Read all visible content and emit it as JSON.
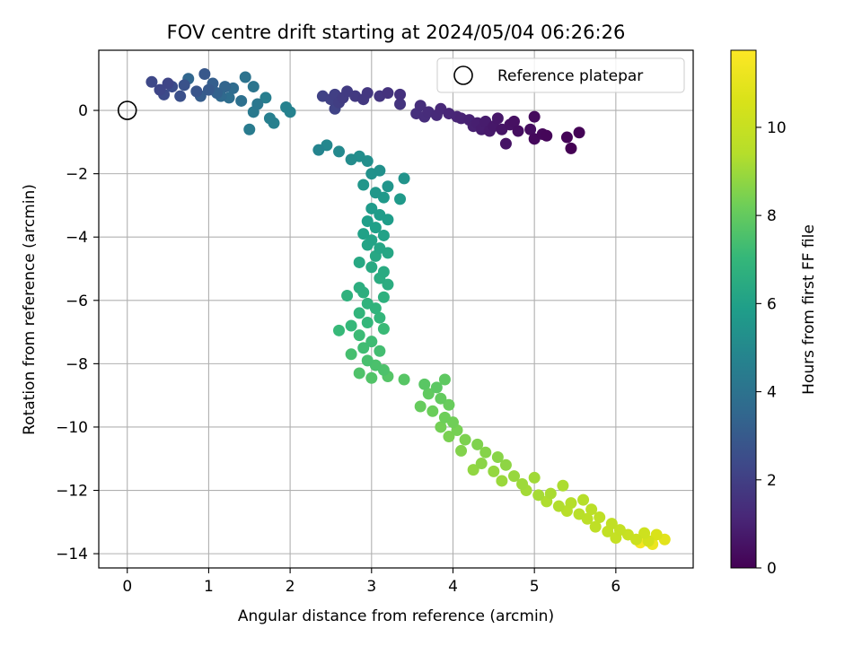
{
  "chart_data": {
    "type": "scatter",
    "title": "FOV centre drift starting at 2024/05/04 06:26:26",
    "xlabel": "Angular distance from reference (arcmin)",
    "ylabel": "Rotation from reference (arcmin)",
    "xlim": [
      -0.35,
      6.95
    ],
    "ylim": [
      -14.45,
      1.9
    ],
    "xticks": [
      "0",
      "1",
      "2",
      "3",
      "4",
      "5",
      "6"
    ],
    "yticks": [
      "0",
      "−2",
      "−4",
      "−6",
      "−8",
      "−10",
      "−12",
      "−14"
    ],
    "grid": true,
    "legend": {
      "position": "upper-right",
      "label": "Reference platepar"
    },
    "reference_point": {
      "x": 0,
      "y": 0
    },
    "colormap": "viridis",
    "colorbar": {
      "label": "Hours from first FF file",
      "range": [
        0,
        11.75
      ],
      "ticks": [
        "0",
        "2",
        "4",
        "6",
        "8",
        "10"
      ]
    },
    "series": [
      {
        "values": [
          {
            "x": 5.45,
            "y": -1.2,
            "h": 0.0
          },
          {
            "x": 5.55,
            "y": -0.7,
            "h": 0.05
          },
          {
            "x": 5.4,
            "y": -0.85,
            "h": 0.1
          },
          {
            "x": 5.15,
            "y": -0.8,
            "h": 0.15
          },
          {
            "x": 5.1,
            "y": -0.75,
            "h": 0.2
          },
          {
            "x": 5.0,
            "y": -0.9,
            "h": 0.25
          },
          {
            "x": 5.0,
            "y": -0.2,
            "h": 0.3
          },
          {
            "x": 4.95,
            "y": -0.6,
            "h": 0.35
          },
          {
            "x": 4.8,
            "y": -0.65,
            "h": 0.4
          },
          {
            "x": 4.75,
            "y": -0.35,
            "h": 0.45
          },
          {
            "x": 4.7,
            "y": -0.45,
            "h": 0.5
          },
          {
            "x": 4.65,
            "y": -1.05,
            "h": 0.55
          },
          {
            "x": 4.6,
            "y": -0.6,
            "h": 0.6
          },
          {
            "x": 4.55,
            "y": -0.25,
            "h": 0.65
          },
          {
            "x": 4.5,
            "y": -0.5,
            "h": 0.7
          },
          {
            "x": 4.45,
            "y": -0.65,
            "h": 0.75
          },
          {
            "x": 4.4,
            "y": -0.35,
            "h": 0.8
          },
          {
            "x": 4.35,
            "y": -0.6,
            "h": 0.85
          },
          {
            "x": 4.3,
            "y": -0.4,
            "h": 0.9
          },
          {
            "x": 4.25,
            "y": -0.5,
            "h": 0.95
          },
          {
            "x": 4.2,
            "y": -0.3,
            "h": 1.0
          },
          {
            "x": 4.1,
            "y": -0.25,
            "h": 1.05
          },
          {
            "x": 4.05,
            "y": -0.2,
            "h": 1.1
          },
          {
            "x": 3.95,
            "y": -0.1,
            "h": 1.15
          },
          {
            "x": 3.85,
            "y": 0.05,
            "h": 1.2
          },
          {
            "x": 3.8,
            "y": -0.15,
            "h": 1.25
          },
          {
            "x": 3.7,
            "y": -0.05,
            "h": 1.3
          },
          {
            "x": 3.65,
            "y": -0.2,
            "h": 1.35
          },
          {
            "x": 3.6,
            "y": 0.15,
            "h": 1.4
          },
          {
            "x": 3.55,
            "y": -0.1,
            "h": 1.45
          },
          {
            "x": 3.35,
            "y": 0.5,
            "h": 1.5
          },
          {
            "x": 3.2,
            "y": 0.55,
            "h": 1.55
          },
          {
            "x": 3.35,
            "y": 0.2,
            "h": 1.6
          },
          {
            "x": 3.1,
            "y": 0.45,
            "h": 1.65
          },
          {
            "x": 2.95,
            "y": 0.55,
            "h": 1.7
          },
          {
            "x": 2.9,
            "y": 0.35,
            "h": 1.75
          },
          {
            "x": 2.8,
            "y": 0.45,
            "h": 1.8
          },
          {
            "x": 2.7,
            "y": 0.6,
            "h": 1.85
          },
          {
            "x": 2.65,
            "y": 0.4,
            "h": 1.9
          },
          {
            "x": 2.6,
            "y": 0.25,
            "h": 1.95
          },
          {
            "x": 2.55,
            "y": 0.5,
            "h": 2.0
          },
          {
            "x": 2.5,
            "y": 0.35,
            "h": 2.05
          },
          {
            "x": 2.4,
            "y": 0.45,
            "h": 2.1
          },
          {
            "x": 2.55,
            "y": 0.05,
            "h": 2.15
          },
          {
            "x": 0.5,
            "y": 0.85,
            "h": 2.2
          },
          {
            "x": 0.4,
            "y": 0.65,
            "h": 2.25
          },
          {
            "x": 0.3,
            "y": 0.9,
            "h": 2.3
          },
          {
            "x": 0.45,
            "y": 0.5,
            "h": 2.4
          },
          {
            "x": 0.55,
            "y": 0.75,
            "h": 2.5
          },
          {
            "x": 0.65,
            "y": 0.45,
            "h": 2.6
          },
          {
            "x": 0.7,
            "y": 0.8,
            "h": 2.7
          },
          {
            "x": 0.85,
            "y": 0.6,
            "h": 2.8
          },
          {
            "x": 0.95,
            "y": 1.15,
            "h": 2.9
          },
          {
            "x": 1.0,
            "y": 0.65,
            "h": 3.0
          },
          {
            "x": 0.9,
            "y": 0.45,
            "h": 3.1
          },
          {
            "x": 1.05,
            "y": 0.85,
            "h": 3.2
          },
          {
            "x": 1.1,
            "y": 0.55,
            "h": 3.3
          },
          {
            "x": 1.2,
            "y": 0.75,
            "h": 3.4
          },
          {
            "x": 0.75,
            "y": 1.0,
            "h": 3.5
          },
          {
            "x": 1.15,
            "y": 0.45,
            "h": 3.6
          },
          {
            "x": 1.3,
            "y": 0.7,
            "h": 3.7
          },
          {
            "x": 1.25,
            "y": 0.4,
            "h": 3.8
          },
          {
            "x": 1.4,
            "y": 0.3,
            "h": 3.9
          },
          {
            "x": 1.45,
            "y": 1.05,
            "h": 4.0
          },
          {
            "x": 1.55,
            "y": 0.75,
            "h": 4.1
          },
          {
            "x": 1.6,
            "y": 0.2,
            "h": 4.2
          },
          {
            "x": 1.55,
            "y": -0.05,
            "h": 4.3
          },
          {
            "x": 1.5,
            "y": -0.6,
            "h": 4.4
          },
          {
            "x": 1.7,
            "y": 0.4,
            "h": 4.5
          },
          {
            "x": 1.75,
            "y": -0.25,
            "h": 4.55
          },
          {
            "x": 1.8,
            "y": -0.4,
            "h": 4.6
          },
          {
            "x": 1.95,
            "y": 0.1,
            "h": 4.65
          },
          {
            "x": 2.0,
            "y": -0.05,
            "h": 4.7
          },
          {
            "x": 2.35,
            "y": -1.25,
            "h": 4.8
          },
          {
            "x": 2.45,
            "y": -1.1,
            "h": 4.9
          },
          {
            "x": 2.6,
            "y": -1.3,
            "h": 5.0
          },
          {
            "x": 2.75,
            "y": -1.55,
            "h": 5.1
          },
          {
            "x": 2.85,
            "y": -1.45,
            "h": 5.2
          },
          {
            "x": 2.95,
            "y": -1.6,
            "h": 5.25
          },
          {
            "x": 3.1,
            "y": -1.9,
            "h": 5.3
          },
          {
            "x": 3.0,
            "y": -2.0,
            "h": 5.35
          },
          {
            "x": 3.4,
            "y": -2.15,
            "h": 5.4
          },
          {
            "x": 3.2,
            "y": -2.4,
            "h": 5.5
          },
          {
            "x": 2.9,
            "y": -2.35,
            "h": 5.55
          },
          {
            "x": 3.05,
            "y": -2.6,
            "h": 5.6
          },
          {
            "x": 3.15,
            "y": -2.75,
            "h": 5.65
          },
          {
            "x": 3.35,
            "y": -2.8,
            "h": 5.7
          },
          {
            "x": 3.0,
            "y": -3.1,
            "h": 5.75
          },
          {
            "x": 3.1,
            "y": -3.3,
            "h": 5.8
          },
          {
            "x": 3.2,
            "y": -3.45,
            "h": 5.85
          },
          {
            "x": 2.95,
            "y": -3.5,
            "h": 5.9
          },
          {
            "x": 3.05,
            "y": -3.7,
            "h": 5.95
          },
          {
            "x": 2.9,
            "y": -3.9,
            "h": 6.0
          },
          {
            "x": 3.15,
            "y": -3.95,
            "h": 6.05
          },
          {
            "x": 3.0,
            "y": -4.1,
            "h": 6.1
          },
          {
            "x": 2.95,
            "y": -4.25,
            "h": 6.15
          },
          {
            "x": 3.1,
            "y": -4.35,
            "h": 6.2
          },
          {
            "x": 3.2,
            "y": -4.5,
            "h": 6.25
          },
          {
            "x": 3.05,
            "y": -4.6,
            "h": 6.3
          },
          {
            "x": 2.85,
            "y": -4.8,
            "h": 6.35
          },
          {
            "x": 3.0,
            "y": -4.95,
            "h": 6.4
          },
          {
            "x": 3.15,
            "y": -5.1,
            "h": 6.45
          },
          {
            "x": 3.1,
            "y": -5.3,
            "h": 6.5
          },
          {
            "x": 3.2,
            "y": -5.5,
            "h": 6.55
          },
          {
            "x": 2.85,
            "y": -5.6,
            "h": 6.6
          },
          {
            "x": 2.9,
            "y": -5.75,
            "h": 6.65
          },
          {
            "x": 3.15,
            "y": -5.9,
            "h": 6.7
          },
          {
            "x": 2.7,
            "y": -5.85,
            "h": 6.75
          },
          {
            "x": 2.95,
            "y": -6.1,
            "h": 6.8
          },
          {
            "x": 3.05,
            "y": -6.25,
            "h": 6.85
          },
          {
            "x": 2.85,
            "y": -6.4,
            "h": 6.9
          },
          {
            "x": 3.1,
            "y": -6.55,
            "h": 6.95
          },
          {
            "x": 2.95,
            "y": -6.7,
            "h": 7.0
          },
          {
            "x": 2.75,
            "y": -6.8,
            "h": 7.05
          },
          {
            "x": 2.6,
            "y": -6.95,
            "h": 7.1
          },
          {
            "x": 3.15,
            "y": -6.9,
            "h": 7.15
          },
          {
            "x": 2.85,
            "y": -7.1,
            "h": 7.2
          },
          {
            "x": 3.0,
            "y": -7.3,
            "h": 7.25
          },
          {
            "x": 2.9,
            "y": -7.5,
            "h": 7.3
          },
          {
            "x": 3.1,
            "y": -7.6,
            "h": 7.35
          },
          {
            "x": 2.75,
            "y": -7.7,
            "h": 7.4
          },
          {
            "x": 2.95,
            "y": -7.9,
            "h": 7.45
          },
          {
            "x": 3.05,
            "y": -8.05,
            "h": 7.5
          },
          {
            "x": 3.15,
            "y": -8.2,
            "h": 7.55
          },
          {
            "x": 2.85,
            "y": -8.3,
            "h": 7.6
          },
          {
            "x": 3.0,
            "y": -8.45,
            "h": 7.65
          },
          {
            "x": 3.2,
            "y": -8.4,
            "h": 7.7
          },
          {
            "x": 3.4,
            "y": -8.5,
            "h": 7.75
          },
          {
            "x": 3.65,
            "y": -8.65,
            "h": 7.8
          },
          {
            "x": 3.8,
            "y": -8.75,
            "h": 7.85
          },
          {
            "x": 3.9,
            "y": -8.5,
            "h": 7.9
          },
          {
            "x": 3.7,
            "y": -8.95,
            "h": 7.95
          },
          {
            "x": 3.85,
            "y": -9.1,
            "h": 8.0
          },
          {
            "x": 3.6,
            "y": -9.35,
            "h": 8.05
          },
          {
            "x": 3.95,
            "y": -9.3,
            "h": 8.1
          },
          {
            "x": 3.75,
            "y": -9.5,
            "h": 8.15
          },
          {
            "x": 3.9,
            "y": -9.7,
            "h": 8.2
          },
          {
            "x": 4.0,
            "y": -9.85,
            "h": 8.25
          },
          {
            "x": 3.85,
            "y": -10.0,
            "h": 8.3
          },
          {
            "x": 4.05,
            "y": -10.1,
            "h": 8.35
          },
          {
            "x": 3.95,
            "y": -10.3,
            "h": 8.4
          },
          {
            "x": 4.15,
            "y": -10.4,
            "h": 8.45
          },
          {
            "x": 4.3,
            "y": -10.55,
            "h": 8.5
          },
          {
            "x": 4.1,
            "y": -10.75,
            "h": 8.55
          },
          {
            "x": 4.4,
            "y": -10.8,
            "h": 8.6
          },
          {
            "x": 4.55,
            "y": -10.95,
            "h": 8.65
          },
          {
            "x": 4.35,
            "y": -11.15,
            "h": 8.7
          },
          {
            "x": 4.65,
            "y": -11.2,
            "h": 8.75
          },
          {
            "x": 4.25,
            "y": -11.35,
            "h": 8.8
          },
          {
            "x": 4.5,
            "y": -11.4,
            "h": 8.85
          },
          {
            "x": 4.75,
            "y": -11.55,
            "h": 8.9
          },
          {
            "x": 4.6,
            "y": -11.7,
            "h": 8.95
          },
          {
            "x": 4.85,
            "y": -11.8,
            "h": 9.0
          },
          {
            "x": 5.0,
            "y": -11.6,
            "h": 9.05
          },
          {
            "x": 4.9,
            "y": -12.0,
            "h": 9.1
          },
          {
            "x": 5.05,
            "y": -12.15,
            "h": 9.15
          },
          {
            "x": 5.2,
            "y": -12.1,
            "h": 9.2
          },
          {
            "x": 5.35,
            "y": -11.85,
            "h": 9.25
          },
          {
            "x": 5.15,
            "y": -12.35,
            "h": 9.3
          },
          {
            "x": 5.3,
            "y": -12.5,
            "h": 9.35
          },
          {
            "x": 5.45,
            "y": -12.4,
            "h": 9.4
          },
          {
            "x": 5.6,
            "y": -12.3,
            "h": 9.45
          },
          {
            "x": 5.4,
            "y": -12.65,
            "h": 9.5
          },
          {
            "x": 5.55,
            "y": -12.75,
            "h": 9.55
          },
          {
            "x": 5.7,
            "y": -12.6,
            "h": 9.6
          },
          {
            "x": 5.65,
            "y": -12.9,
            "h": 9.65
          },
          {
            "x": 5.8,
            "y": -12.85,
            "h": 9.7
          },
          {
            "x": 5.75,
            "y": -13.15,
            "h": 9.75
          },
          {
            "x": 5.95,
            "y": -13.05,
            "h": 9.8
          },
          {
            "x": 5.9,
            "y": -13.3,
            "h": 9.85
          },
          {
            "x": 6.05,
            "y": -13.25,
            "h": 9.9
          },
          {
            "x": 6.0,
            "y": -13.5,
            "h": 9.95
          },
          {
            "x": 6.15,
            "y": -13.4,
            "h": 10.0
          },
          {
            "x": 6.25,
            "y": -13.55,
            "h": 10.1
          },
          {
            "x": 6.35,
            "y": -13.35,
            "h": 10.2
          },
          {
            "x": 6.4,
            "y": -13.6,
            "h": 10.4
          },
          {
            "x": 6.5,
            "y": -13.4,
            "h": 10.6
          },
          {
            "x": 6.6,
            "y": -13.55,
            "h": 10.9
          },
          {
            "x": 6.45,
            "y": -13.7,
            "h": 11.2
          },
          {
            "x": 6.3,
            "y": -13.65,
            "h": 11.5
          }
        ]
      }
    ]
  }
}
